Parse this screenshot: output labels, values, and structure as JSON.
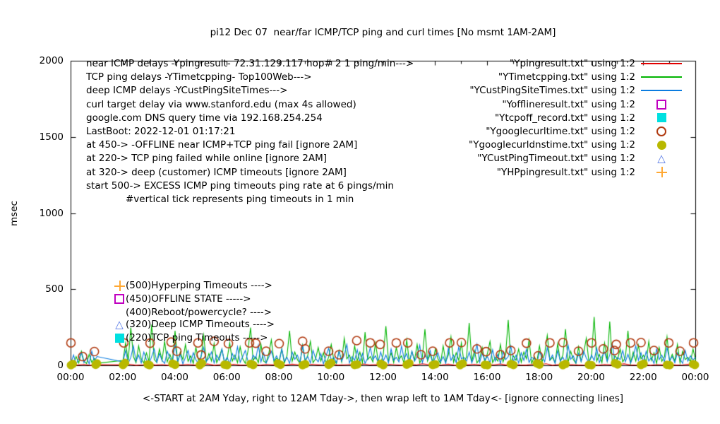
{
  "title": "pi12 Dec 07  near/far ICMP/TCP ping and curl times [No msmt 1AM-2AM]",
  "ylabel": "msec",
  "xlabel_note": "<-START at 2AM Yday, right to 12AM Tday->, then wrap left to 1AM Tday<- [ignore connecting lines]",
  "info_lines": [
    "near ICMP delays -Ypingresult- 72.31.129.117 hop# 2 1 ping/min--->",
    "TCP ping delays -YTimetcpping- Top100Web--->",
    "deep ICMP delays -YCustPingSiteTimes--->",
    "curl target delay via www.stanford.edu (max 4s allowed)",
    "google.com DNS query time via 192.168.254.254",
    "LastBoot: 2022-12-01 01:17:21",
    "at 450-> -OFFLINE near ICMP+TCP ping fail [ignore 2AM]",
    "at 220-> TCP ping failed while online [ignore 2AM]",
    "at 320-> deep (customer) ICMP timeouts [ignore 2AM]",
    "start 500-> EXCESS ICMP ping timeouts ping rate at 6 pings/min",
    "#vertical tick represents ping timeouts in 1 min"
  ],
  "legend": [
    {
      "label": "\"Ypingresult.txt\" using 1:2",
      "marker": "line",
      "color": "#e00000"
    },
    {
      "label": "\"YTimetcpping.txt\" using 1:2",
      "marker": "line",
      "color": "#00b400"
    },
    {
      "label": "\"YCustPingSiteTimes.txt\" using 1:2",
      "marker": "line",
      "color": "#0b7ce0"
    },
    {
      "label": "\"Yofflineresult.txt\" using 1:2",
      "marker": "square-open",
      "color": "#c000c0"
    },
    {
      "label": "\"Ytcpoff_record.txt\" using 1:2",
      "marker": "square-fill",
      "color": "#00e0e0"
    },
    {
      "label": "\"Ygooglecurltime.txt\" using 1:2",
      "marker": "circle-open",
      "color": "#b03a10"
    },
    {
      "label": "\"Ygooglecurldnstime.txt\" using 1:2",
      "marker": "circle-fill",
      "color": "#b8b800"
    },
    {
      "label": "\"YCustPingTimeout.txt\" using 1:2",
      "marker": "triangle",
      "color": "#5578e6"
    },
    {
      "label": "\"YHPpingresult.txt\" using 1:2",
      "marker": "plus",
      "color": "#ffa833"
    }
  ],
  "annotations": [
    {
      "marker": "plus",
      "text": "(500)Hyperping Timeouts ---->",
      "level": 500
    },
    {
      "marker": "square-open",
      "text": "(450)OFFLINE STATE ----->",
      "level": 450
    },
    {
      "marker": "none",
      "text": "(400)Reboot/powercycle? ---->",
      "level": 400
    },
    {
      "marker": "triangle",
      "text": "(320)Deep ICMP Timeouts ---->",
      "level": 320
    },
    {
      "marker": "square-fill",
      "text": "(220)TCP ping Timeouts ----->",
      "level": 220
    }
  ],
  "chart_data": {
    "type": "line",
    "x_range": [
      0,
      24
    ],
    "y_range": [
      0,
      2000
    ],
    "x_tick_hours": [
      0,
      2,
      4,
      6,
      8,
      10,
      12,
      14,
      16,
      18,
      20,
      22,
      24
    ],
    "x_tick_labels": [
      "00:00",
      "02:00",
      "04:00",
      "06:00",
      "08:00",
      "10:00",
      "12:00",
      "14:00",
      "16:00",
      "18:00",
      "20:00",
      "22:00",
      "00:00"
    ],
    "y_ticks": [
      0,
      500,
      1000,
      1500,
      2000
    ],
    "y_tick_labels": [
      "0",
      "500",
      "1000",
      "1500",
      "2000"
    ],
    "grid": false,
    "legend_position": "top-right-inside",
    "note": "no measurements 1AM-2AM; nulls mark the gap, neighbours are joined by connecting lines",
    "series": [
      {
        "name": "Ypingresult.txt",
        "style": "line",
        "color": "#e00000",
        "t0": 0,
        "dt": 0.25,
        "values": [
          6,
          4,
          8,
          3,
          7,
          null,
          null,
          null,
          5,
          9,
          3,
          6,
          12,
          4,
          7,
          3,
          10,
          5,
          8,
          4,
          6,
          11,
          3,
          7,
          5,
          9,
          4,
          6,
          13,
          3,
          8,
          5,
          7,
          4,
          10,
          6,
          3,
          9,
          5,
          7,
          12,
          4,
          6,
          8,
          3,
          11,
          5,
          7,
          4,
          9,
          6,
          3,
          8,
          5,
          12,
          7,
          4,
          6,
          10,
          3,
          7,
          5,
          9,
          4,
          8,
          6,
          11,
          3,
          7,
          5,
          4,
          9,
          6,
          13,
          3,
          8,
          5,
          7,
          4,
          6,
          10,
          3,
          8,
          5,
          7,
          12,
          4,
          6,
          9,
          3,
          7,
          5,
          8,
          4,
          6,
          10,
          5
        ]
      },
      {
        "name": "YTimetcpping.txt",
        "style": "line",
        "color": "#00b400",
        "t0": 0,
        "dt": 0.1,
        "values": [
          25,
          12,
          60,
          18,
          95,
          30,
          14,
          75,
          22,
          48,
          16,
          null,
          null,
          null,
          null,
          null,
          null,
          null,
          null,
          null,
          35,
          150,
          35,
          250,
          60,
          20,
          130,
          45,
          18,
          85,
          28,
          270,
          40,
          22,
          110,
          35,
          160,
          25,
          75,
          30,
          230,
          18,
          90,
          40,
          140,
          28,
          65,
          15,
          120,
          35,
          55,
          200,
          25,
          80,
          30,
          145,
          20,
          60,
          110,
          18,
          45,
          150,
          30,
          70,
          20,
          125,
          45,
          15,
          95,
          250,
          35,
          60,
          20,
          140,
          30,
          18,
          80,
          170,
          25,
          50,
          35,
          110,
          18,
          65,
          230,
          28,
          90,
          40,
          15,
          135,
          25,
          70,
          160,
          20,
          45,
          120,
          30,
          85,
          18,
          55,
          140,
          35,
          15,
          100,
          25,
          180,
          45,
          70,
          20,
          130,
          30,
          90,
          18,
          220,
          40,
          60,
          25,
          150,
          35,
          15,
          75,
          260,
          30,
          85,
          20,
          120,
          40,
          65,
          15,
          170,
          25,
          95,
          35,
          140,
          18,
          55,
          240,
          30,
          75,
          20,
          110,
          45,
          15,
          130,
          28,
          70,
          190,
          22,
          85,
          35,
          150,
          20,
          60,
          280,
          30,
          100,
          18,
          45,
          120,
          25,
          80,
          160,
          20,
          55,
          30,
          140,
          25,
          75,
          300,
          18,
          65,
          35,
          110,
          22,
          90,
          45,
          170,
          15,
          60,
          28,
          130,
          25,
          80,
          200,
          35,
          55,
          18,
          145,
          30,
          70,
          240,
          20,
          95,
          40,
          15,
          125,
          28,
          85,
          180,
          22,
          60,
          320,
          30,
          75,
          20,
          150,
          35,
          290,
          18,
          65,
          40,
          110,
          25,
          55,
          230,
          15,
          90,
          30,
          135,
          45,
          70,
          20,
          160,
          35,
          85,
          15,
          120,
          28,
          60,
          190,
          25,
          75,
          30,
          140,
          18,
          95,
          40,
          55,
          25,
          110,
          35
        ]
      },
      {
        "name": "YCustPingSiteTimes.txt",
        "style": "line",
        "color": "#0b7ce0",
        "t0": 0,
        "dt": 0.1,
        "values": [
          18,
          70,
          10,
          45,
          85,
          20,
          55,
          12,
          95,
          30,
          60,
          null,
          null,
          null,
          null,
          null,
          null,
          null,
          null,
          null,
          25,
          100,
          15,
          55,
          130,
          30,
          70,
          18,
          90,
          40,
          12,
          60,
          110,
          22,
          80,
          35,
          15,
          95,
          50,
          25,
          140,
          30,
          75,
          12,
          55,
          100,
          20,
          85,
          38,
          15,
          65,
          120,
          28,
          50,
          90,
          18,
          70,
          35,
          110,
          25,
          55,
          15,
          80,
          40,
          125,
          22,
          60,
          100,
          30,
          12,
          70,
          45,
          135,
          25,
          85,
          18,
          55,
          95,
          35,
          65,
          20,
          110,
          30,
          55,
          15,
          90,
          42,
          70,
          22,
          130,
          35,
          60,
          18,
          100,
          48,
          25,
          80,
          12,
          65,
          115,
          38,
          55,
          20,
          95,
          30,
          70,
          140,
          18,
          60,
          35,
          105,
          25,
          80,
          15,
          50,
          120,
          40,
          65,
          22,
          90,
          30,
          70,
          18,
          110,
          35,
          55,
          25,
          130,
          45,
          80,
          15,
          95,
          30,
          60,
          135,
          20,
          75,
          40,
          100,
          18,
          55,
          85,
          25,
          60,
          15,
          115,
          35,
          70,
          20,
          125,
          45,
          55,
          30,
          90,
          18,
          65,
          140,
          22,
          80,
          38,
          60,
          20,
          105,
          30,
          75,
          15,
          95,
          40,
          60,
          130,
          25,
          70,
          18,
          85,
          35,
          110,
          22,
          55,
          45,
          15,
          90,
          60,
          25,
          120,
          38,
          70,
          15,
          100,
          30,
          55,
          20,
          135,
          42,
          65,
          18,
          80,
          28,
          95,
          50,
          22,
          70,
          35,
          115,
          20,
          60,
          90,
          28,
          70,
          145,
          15,
          55,
          40,
          100,
          25,
          75,
          18,
          60,
          130,
          35,
          85,
          22,
          95,
          30,
          55,
          15,
          110,
          40,
          70,
          25,
          120,
          35,
          60,
          20,
          85,
          45,
          15,
          100,
          30,
          65,
          38,
          55
        ]
      },
      {
        "name": "Yofflineresult.txt",
        "style": "points",
        "marker": "square-open",
        "color": "#c000c0",
        "points": []
      },
      {
        "name": "Ytcpoff_record.txt",
        "style": "points",
        "marker": "square-fill",
        "color": "#00e0e0",
        "points": []
      },
      {
        "name": "Ygooglecurltime.txt",
        "style": "points",
        "marker": "circle-open",
        "color": "#b03a10",
        "points": [
          [
            0.0,
            150
          ],
          [
            0.45,
            60
          ],
          [
            0.9,
            93
          ],
          [
            2.03,
            150
          ],
          [
            3.04,
            148
          ],
          [
            3.85,
            155
          ],
          [
            4.07,
            95
          ],
          [
            4.88,
            150
          ],
          [
            5.0,
            70
          ],
          [
            5.5,
            160
          ],
          [
            6.05,
            145
          ],
          [
            6.86,
            150
          ],
          [
            7.1,
            148
          ],
          [
            7.5,
            95
          ],
          [
            8.0,
            145
          ],
          [
            8.9,
            160
          ],
          [
            9.0,
            110
          ],
          [
            9.9,
            95
          ],
          [
            10.3,
            72
          ],
          [
            10.98,
            165
          ],
          [
            11.5,
            150
          ],
          [
            11.88,
            140
          ],
          [
            12.5,
            150
          ],
          [
            12.94,
            150
          ],
          [
            13.45,
            72
          ],
          [
            13.9,
            95
          ],
          [
            14.55,
            150
          ],
          [
            15.0,
            152
          ],
          [
            15.6,
            110
          ],
          [
            15.95,
            92
          ],
          [
            16.5,
            72
          ],
          [
            16.9,
            100
          ],
          [
            17.5,
            148
          ],
          [
            17.95,
            65
          ],
          [
            18.4,
            150
          ],
          [
            18.9,
            152
          ],
          [
            19.5,
            95
          ],
          [
            20.0,
            150
          ],
          [
            20.45,
            110
          ],
          [
            20.88,
            100
          ],
          [
            20.95,
            140
          ],
          [
            21.5,
            150
          ],
          [
            21.9,
            152
          ],
          [
            22.4,
            100
          ],
          [
            22.97,
            150
          ],
          [
            23.4,
            95
          ],
          [
            23.92,
            150
          ]
        ]
      },
      {
        "name": "Ygooglecurldnstime.txt",
        "style": "points",
        "marker": "circle-fill",
        "color": "#b8b800",
        "points": [
          [
            0.0,
            4
          ],
          [
            0.07,
            12
          ],
          [
            0.95,
            6
          ],
          [
            1.0,
            15
          ],
          [
            2.0,
            5
          ],
          [
            2.08,
            18
          ],
          [
            2.95,
            8
          ],
          [
            3.02,
            3
          ],
          [
            3.9,
            14
          ],
          [
            4.0,
            6
          ],
          [
            4.95,
            4
          ],
          [
            5.03,
            16
          ],
          [
            5.9,
            7
          ],
          [
            6.0,
            3
          ],
          [
            6.9,
            12
          ],
          [
            7.0,
            5
          ],
          [
            7.95,
            15
          ],
          [
            8.05,
            6
          ],
          [
            8.9,
            4
          ],
          [
            9.0,
            10
          ],
          [
            9.9,
            6
          ],
          [
            10.0,
            18
          ],
          [
            10.9,
            5
          ],
          [
            11.0,
            8
          ],
          [
            11.9,
            13
          ],
          [
            12.0,
            4
          ],
          [
            12.9,
            7
          ],
          [
            13.0,
            16
          ],
          [
            13.9,
            5
          ],
          [
            14.0,
            9
          ],
          [
            14.95,
            3
          ],
          [
            15.05,
            14
          ],
          [
            15.9,
            6
          ],
          [
            16.0,
            4
          ],
          [
            16.9,
            11
          ],
          [
            17.0,
            5
          ],
          [
            17.9,
            15
          ],
          [
            18.0,
            7
          ],
          [
            18.9,
            4
          ],
          [
            19.0,
            12
          ],
          [
            19.9,
            6
          ],
          [
            20.0,
            3
          ],
          [
            20.9,
            16
          ],
          [
            21.0,
            8
          ],
          [
            21.9,
            5
          ],
          [
            22.0,
            13
          ],
          [
            22.9,
            6
          ],
          [
            23.0,
            4
          ],
          [
            23.9,
            10
          ],
          [
            23.97,
            5
          ]
        ]
      },
      {
        "name": "YCustPingTimeout.txt",
        "style": "points",
        "marker": "triangle",
        "color": "#5578e6",
        "points": []
      },
      {
        "name": "YHPpingresult.txt",
        "style": "points",
        "marker": "plus",
        "color": "#ffa833",
        "points": []
      }
    ]
  }
}
